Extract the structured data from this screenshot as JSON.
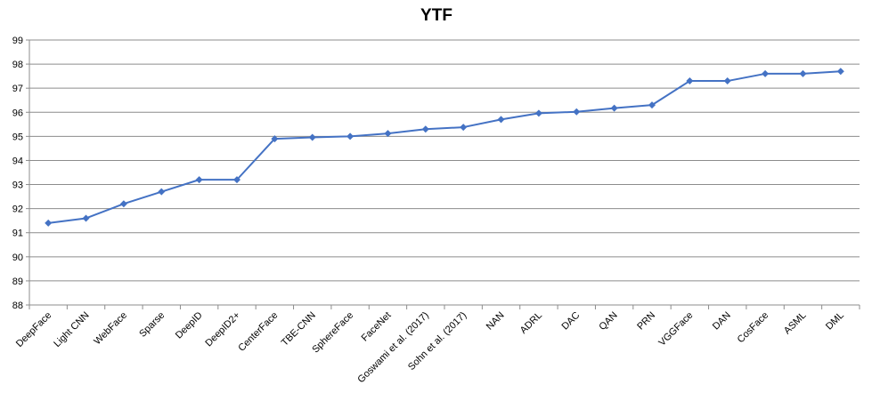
{
  "chart_data": {
    "type": "line",
    "title": "YTF",
    "xlabel": "",
    "ylabel": "",
    "ylim": [
      88,
      99
    ],
    "yticks": [
      88,
      89,
      90,
      91,
      92,
      93,
      94,
      95,
      96,
      97,
      98,
      99
    ],
    "grid": true,
    "legend": "none",
    "categories": [
      "DeepFace",
      "Light CNN",
      "WebFace",
      "Sparse",
      "DeepID",
      "DeepID2+",
      "CenterFace",
      "TBE-CNN",
      "SphereFace",
      "FaceNet",
      "Goswami et al. (2017)",
      "Sohn et al. (2017)",
      "NAN",
      "ADRL",
      "DAC",
      "QAN",
      "PRN",
      "VGGFace",
      "DAN",
      "CosFace",
      "ASML",
      "DML"
    ],
    "series": [
      {
        "values": [
          91.4,
          91.6,
          92.2,
          92.7,
          93.2,
          93.2,
          94.9,
          94.96,
          95.0,
          95.12,
          95.3,
          95.38,
          95.7,
          95.96,
          96.02,
          96.17,
          96.3,
          97.3,
          97.3,
          97.6,
          97.6,
          97.7
        ],
        "color": "#4472C4"
      }
    ]
  }
}
